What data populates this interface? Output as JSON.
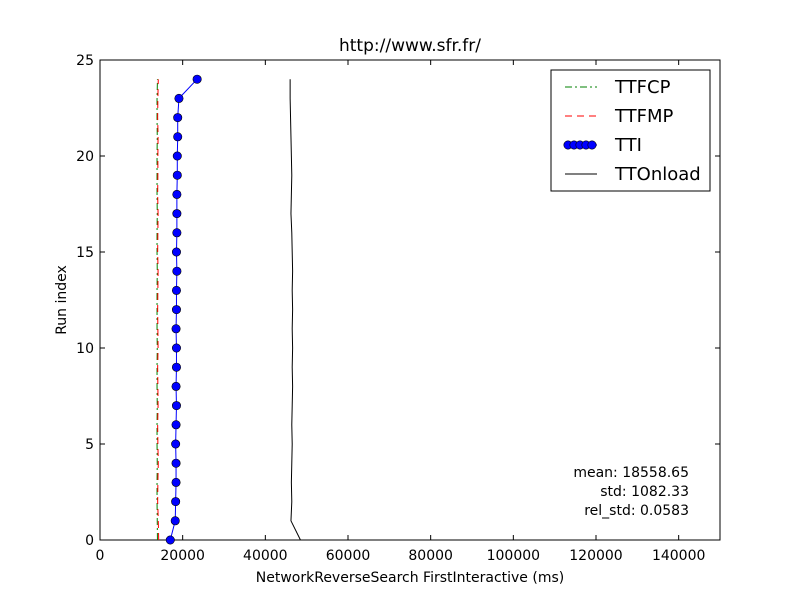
{
  "chart_data": {
    "type": "line",
    "title": "http://www.sfr.fr/",
    "xlabel": "NetworkReverseSearch FirstInteractive (ms)",
    "ylabel": "Run index",
    "xlim": [
      0,
      150000
    ],
    "ylim": [
      0,
      25
    ],
    "xticks": [
      0,
      20000,
      40000,
      60000,
      80000,
      100000,
      120000,
      140000
    ],
    "yticks": [
      0,
      5,
      10,
      15,
      20,
      25
    ],
    "grid": false,
    "legend_position": "top-right",
    "series": [
      {
        "name": "TTFCP",
        "style": "dashdot",
        "color": "#008000",
        "y": [
          0,
          1,
          2,
          3,
          4,
          5,
          6,
          7,
          8,
          9,
          10,
          11,
          12,
          13,
          14,
          15,
          16,
          17,
          18,
          19,
          20,
          21,
          22,
          23,
          24
        ],
        "x": [
          13900,
          13850,
          13800,
          13800,
          13850,
          13800,
          13800,
          13850,
          13800,
          13800,
          13850,
          13800,
          13800,
          13800,
          13850,
          13800,
          13800,
          13850,
          13800,
          13800,
          13800,
          13850,
          13800,
          13800,
          13900
        ]
      },
      {
        "name": "TTFMP",
        "style": "dashed",
        "color": "#ff0000",
        "y": [
          0,
          1,
          2,
          3,
          4,
          5,
          6,
          7,
          8,
          9,
          10,
          11,
          12,
          13,
          14,
          15,
          16,
          17,
          18,
          19,
          20,
          21,
          22,
          23,
          24
        ],
        "x": [
          14200,
          14100,
          13950,
          14000,
          14100,
          14000,
          13950,
          14050,
          14000,
          13950,
          14050,
          14000,
          13950,
          14000,
          14050,
          13950,
          14000,
          14050,
          13950,
          14000,
          14000,
          14050,
          13950,
          14000,
          14100
        ]
      },
      {
        "name": "TTI",
        "style": "solid-marker",
        "color": "#0000ff",
        "y": [
          0,
          1,
          2,
          3,
          4,
          5,
          6,
          7,
          8,
          9,
          10,
          11,
          12,
          13,
          14,
          15,
          16,
          17,
          18,
          19,
          20,
          21,
          22,
          23,
          24
        ],
        "x": [
          17000,
          18200,
          18300,
          18400,
          18400,
          18300,
          18400,
          18500,
          18400,
          18500,
          18500,
          18400,
          18500,
          18500,
          18600,
          18500,
          18600,
          18600,
          18600,
          18700,
          18700,
          18800,
          18800,
          19100,
          23500
        ]
      },
      {
        "name": "TTOnload",
        "style": "solid",
        "color": "#000000",
        "y": [
          0,
          1,
          2,
          3,
          4,
          5,
          6,
          7,
          8,
          9,
          10,
          11,
          12,
          13,
          14,
          15,
          16,
          17,
          18,
          19,
          20,
          21,
          22,
          23,
          24
        ],
        "x": [
          48500,
          46200,
          46400,
          46300,
          46400,
          46500,
          46400,
          46500,
          46600,
          46500,
          46600,
          46500,
          46600,
          46500,
          46600,
          46500,
          46400,
          46200,
          46300,
          46400,
          46300,
          46200,
          46100,
          46000,
          46000
        ]
      }
    ],
    "stats": {
      "mean": "mean: 18558.65",
      "std": "std: 1082.33",
      "rel_std": "rel_std: 0.0583"
    }
  }
}
